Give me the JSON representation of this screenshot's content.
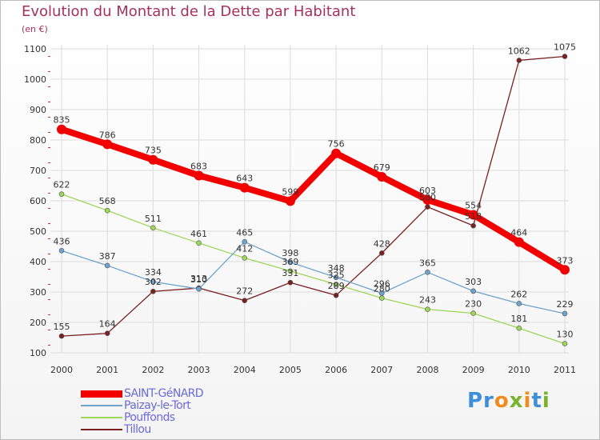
{
  "header": {
    "title": "Evolution du Montant de la Dette par Habitant",
    "subtitle": "(en €)"
  },
  "logo": {
    "text": "Proxiti"
  },
  "colors": {
    "title": "#a8315a",
    "grid": "#dcdcdc",
    "tick": "#c0392b"
  },
  "chart_data": {
    "type": "line",
    "title": "Evolution du Montant de la Dette par Habitant",
    "subtitle": "(en €)",
    "xlabel": "",
    "ylabel": "",
    "x": [
      "2000",
      "2001",
      "2002",
      "2003",
      "2004",
      "2005",
      "2006",
      "2007",
      "2008",
      "2009",
      "2010",
      "2011"
    ],
    "y_ticks": [
      100,
      200,
      300,
      400,
      500,
      600,
      700,
      800,
      900,
      1000,
      1100
    ],
    "ylim": [
      100,
      1100
    ],
    "grid": true,
    "legend_position": "bottom-left",
    "series": [
      {
        "name": "SAINT-GéNARD",
        "color": "#f20000",
        "values": [
          835,
          786,
          735,
          683,
          643,
          599,
          756,
          679,
          603,
          554,
          464,
          373
        ]
      },
      {
        "name": "Paizay-le-Tort",
        "color": "#6fa3cc",
        "values": [
          436,
          387,
          334,
          310,
          465,
          398,
          348,
          296,
          365,
          303,
          262,
          229
        ]
      },
      {
        "name": "Pouffonds",
        "color": "#9ed65a",
        "values": [
          622,
          568,
          511,
          461,
          412,
          369,
          325,
          280,
          243,
          230,
          181,
          130
        ]
      },
      {
        "name": "Tillou",
        "color": "#7a2020",
        "values": [
          155,
          164,
          302,
          313,
          272,
          331,
          289,
          428,
          580,
          518,
          1062,
          1075
        ]
      }
    ]
  }
}
